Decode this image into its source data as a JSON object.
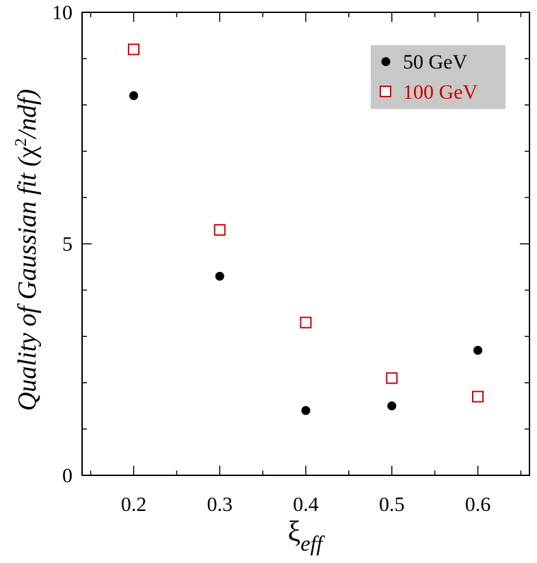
{
  "chart_data": {
    "type": "scatter",
    "xlabel": "ξ",
    "xlabel_subscript": "eff",
    "ylabel_prefix": "Quality of Gaussian fit (",
    "ylabel_chi": "χ",
    "ylabel_sup": "2",
    "ylabel_suffix": "/ndf)",
    "xlim": [
      0.14,
      0.66
    ],
    "ylim": [
      0,
      10
    ],
    "xticks": [
      "0.2",
      "0.3",
      "0.4",
      "0.5",
      "0.6"
    ],
    "yticks": [
      "0",
      "5",
      "10"
    ],
    "legend_position": "top-right",
    "legend_background": "#c8c8c8",
    "series": [
      {
        "name": "50 GeV",
        "marker": "filled-circle",
        "color": "#000000",
        "x": [
          0.2,
          0.3,
          0.4,
          0.5,
          0.6
        ],
        "y": [
          8.2,
          4.3,
          1.4,
          1.5,
          2.7
        ]
      },
      {
        "name": "100 GeV",
        "marker": "open-square",
        "color": "#cc0000",
        "x": [
          0.2,
          0.3,
          0.4,
          0.5,
          0.6
        ],
        "y": [
          9.2,
          5.3,
          3.3,
          2.1,
          1.7
        ]
      }
    ]
  }
}
